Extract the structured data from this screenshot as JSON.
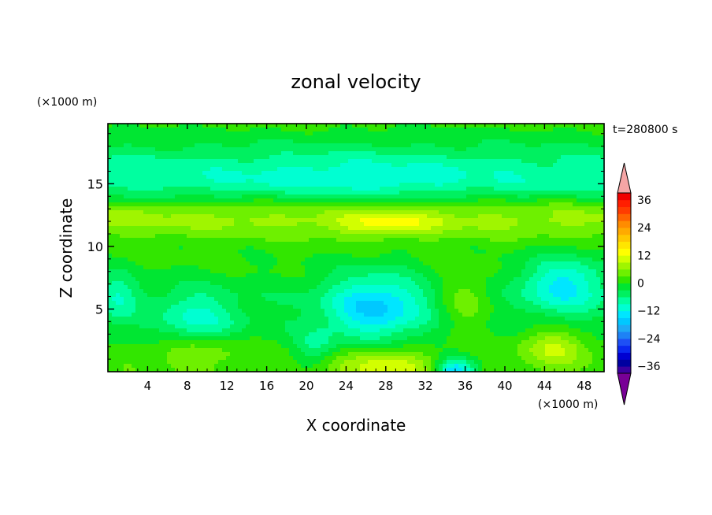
{
  "chart_data": {
    "type": "heatmap",
    "title": "zonal velocity",
    "xlabel": "X coordinate",
    "ylabel": "Z coordinate",
    "x_unit": "(×1000 m)",
    "y_unit": "(×1000 m)",
    "time_label": "t=280800 s",
    "xlim": [
      0,
      50
    ],
    "ylim": [
      0,
      19.8
    ],
    "x_ticks": [
      4,
      8,
      12,
      16,
      20,
      24,
      28,
      32,
      36,
      40,
      44,
      48
    ],
    "y_ticks": [
      5,
      10,
      15
    ],
    "colorbar": {
      "levels": [
        -42,
        -39,
        -36,
        -33,
        -30,
        -27,
        -24,
        -21,
        -18,
        -15,
        -12,
        -9,
        -6,
        -3,
        0,
        3,
        6,
        9,
        12,
        15,
        18,
        21,
        24,
        27,
        30,
        33,
        36,
        39,
        42
      ],
      "tick_labels": [
        "36",
        "24",
        "12",
        "0",
        "−12",
        "−24",
        "−36"
      ],
      "tick_values": [
        36,
        24,
        12,
        0,
        -12,
        -24,
        -36
      ],
      "colors": [
        "#780096",
        "#3c00a0",
        "#0000a0",
        "#0000d2",
        "#0a28f0",
        "#1e50f5",
        "#1e82f5",
        "#1eaaf5",
        "#00c8ff",
        "#00e6ff",
        "#00ffd2",
        "#00ffa0",
        "#00f060",
        "#00e632",
        "#32e600",
        "#6ef000",
        "#a0f500",
        "#d2ff00",
        "#ffff00",
        "#ffe600",
        "#ffc800",
        "#ffaa00",
        "#ff8c00",
        "#ff6400",
        "#ff3c00",
        "#ff1e00",
        "#f00000",
        "#d20000",
        "#f5a5a5"
      ],
      "extend": "both"
    },
    "field": {
      "description_units": "zonal velocity, m/s",
      "base_profile_z": [
        0,
        2,
        4,
        6,
        8,
        10,
        11,
        12,
        13,
        14,
        15,
        16,
        17,
        18,
        19,
        19.8
      ],
      "base_profile_u": [
        2,
        0,
        -2,
        -2,
        0,
        1,
        4,
        7,
        5,
        -3,
        -8,
        -8,
        -6,
        -3,
        -1,
        1
      ],
      "features": [
        {
          "x": 9,
          "z": 4.3,
          "amp": -8,
          "sx": 4,
          "sz": 2.2
        },
        {
          "x": 27,
          "z": 5.2,
          "amp": -14,
          "sx": 5,
          "sz": 2.7
        },
        {
          "x": 46,
          "z": 7.0,
          "amp": -12,
          "sx": 4.5,
          "sz": 2.2
        },
        {
          "x": 1,
          "z": 6.0,
          "amp": -7,
          "sx": 2,
          "sz": 2
        },
        {
          "x": 21,
          "z": 2.0,
          "amp": -6,
          "sx": 2,
          "sz": 1.5
        },
        {
          "x": 35,
          "z": 0.0,
          "amp": -18,
          "sx": 2,
          "sz": 1.0
        },
        {
          "x": 28,
          "z": 0.5,
          "amp": 10,
          "sx": 5,
          "sz": 1.4
        },
        {
          "x": 45,
          "z": 2.0,
          "amp": 9,
          "sx": 3.5,
          "sz": 1.6
        },
        {
          "x": 9,
          "z": 1.6,
          "amp": 6,
          "sx": 5,
          "sz": 1.2
        },
        {
          "x": 36,
          "z": 5.5,
          "amp": 6,
          "sx": 3,
          "sz": 2.5
        },
        {
          "x": 28,
          "z": 11.8,
          "amp": 7,
          "sx": 5,
          "sz": 1.0
        },
        {
          "x": 25,
          "z": 15.5,
          "amp": -3,
          "sx": 10,
          "sz": 2.0
        }
      ]
    }
  }
}
